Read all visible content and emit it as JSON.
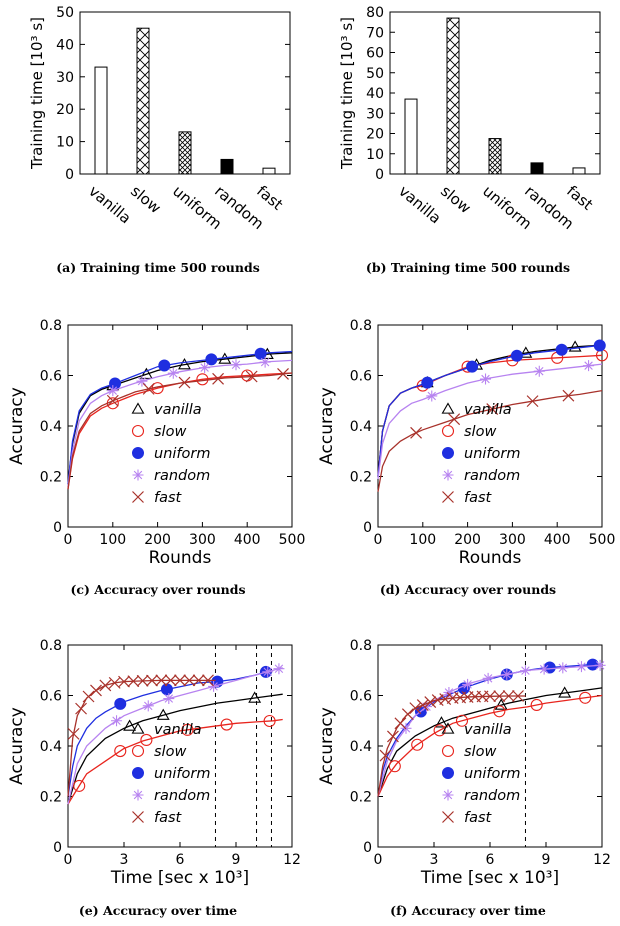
{
  "captions": {
    "a": "(a) Training time 500 rounds",
    "b": "(b) Training time 500 rounds",
    "c": "(c) Accuracy over rounds",
    "d": "(d) Accuracy over rounds",
    "e": "(e) Accuracy over time",
    "f": "(f) Accuracy over time"
  },
  "colors": {
    "vanilla": "#000000",
    "slow": "#e8251e",
    "uniform": "#1f2fe0",
    "random": "#b783f0",
    "fast": "#a8322b"
  },
  "chart_data": [
    {
      "id": "a",
      "type": "bar",
      "ylabel": "Training time [10³ s]",
      "ylim": [
        0,
        50
      ],
      "yticks": [
        0,
        10,
        20,
        30,
        40,
        50
      ],
      "categories": [
        "vanilla",
        "slow",
        "uniform",
        "random",
        "fast"
      ],
      "values": [
        33,
        45,
        13,
        4.5,
        1.8
      ],
      "patterns": [
        "empty",
        "cross",
        "dense",
        "solid",
        "empty"
      ]
    },
    {
      "id": "b",
      "type": "bar",
      "ylabel": "Training time [10³ s]",
      "ylim": [
        0,
        80
      ],
      "yticks": [
        0,
        10,
        20,
        30,
        40,
        50,
        60,
        70,
        80
      ],
      "categories": [
        "vanilla",
        "slow",
        "uniform",
        "random",
        "fast"
      ],
      "values": [
        37,
        77,
        17.5,
        5.5,
        3
      ],
      "patterns": [
        "empty",
        "cross",
        "dense",
        "solid",
        "empty"
      ]
    },
    {
      "id": "c",
      "type": "line",
      "xlabel": "Rounds",
      "ylabel": "Accuracy",
      "xlim": [
        0,
        500
      ],
      "xticks": [
        0,
        100,
        200,
        300,
        400,
        500
      ],
      "ylim": [
        0,
        0.8
      ],
      "yticks": [
        0,
        0.2,
        0.4,
        0.6,
        0.8
      ],
      "legend": "center",
      "series": [
        {
          "name": "vanilla",
          "x": [
            0,
            10,
            25,
            50,
            75,
            100,
            150,
            200,
            250,
            300,
            350,
            400,
            450,
            500
          ],
          "y": [
            0.17,
            0.33,
            0.45,
            0.52,
            0.545,
            0.56,
            0.59,
            0.62,
            0.64,
            0.655,
            0.665,
            0.675,
            0.685,
            0.69
          ],
          "markers_x": [
            100,
            175,
            260,
            350,
            445
          ]
        },
        {
          "name": "slow",
          "x": [
            0,
            10,
            25,
            50,
            75,
            100,
            150,
            200,
            250,
            300,
            350,
            400,
            450,
            500
          ],
          "y": [
            0.15,
            0.27,
            0.37,
            0.44,
            0.47,
            0.49,
            0.525,
            0.55,
            0.57,
            0.585,
            0.595,
            0.6,
            0.605,
            0.61
          ],
          "markers_x": [
            100,
            200,
            300,
            400
          ]
        },
        {
          "name": "uniform",
          "x": [
            0,
            10,
            25,
            50,
            75,
            100,
            150,
            200,
            250,
            300,
            350,
            400,
            450,
            500
          ],
          "y": [
            0.17,
            0.34,
            0.46,
            0.525,
            0.55,
            0.565,
            0.6,
            0.635,
            0.65,
            0.66,
            0.67,
            0.68,
            0.69,
            0.695
          ],
          "markers_x": [
            105,
            215,
            320,
            430
          ]
        },
        {
          "name": "random",
          "x": [
            0,
            10,
            25,
            50,
            75,
            100,
            150,
            200,
            250,
            300,
            350,
            400,
            450,
            500
          ],
          "y": [
            0.16,
            0.3,
            0.42,
            0.49,
            0.52,
            0.54,
            0.57,
            0.595,
            0.615,
            0.63,
            0.64,
            0.645,
            0.655,
            0.66
          ],
          "markers_x": [
            100,
            165,
            235,
            305,
            375,
            440
          ]
        },
        {
          "name": "fast",
          "x": [
            0,
            10,
            25,
            50,
            75,
            100,
            150,
            200,
            250,
            300,
            350,
            400,
            450,
            500
          ],
          "y": [
            0.15,
            0.28,
            0.38,
            0.45,
            0.48,
            0.5,
            0.535,
            0.555,
            0.57,
            0.58,
            0.59,
            0.595,
            0.6,
            0.61
          ],
          "markers_x": [
            100,
            180,
            260,
            335,
            410,
            480
          ]
        }
      ]
    },
    {
      "id": "d",
      "type": "line",
      "xlabel": "Rounds",
      "ylabel": "Accuracy",
      "xlim": [
        0,
        500
      ],
      "xticks": [
        0,
        100,
        200,
        300,
        400,
        500
      ],
      "ylim": [
        0,
        0.8
      ],
      "yticks": [
        0,
        0.2,
        0.4,
        0.6,
        0.8
      ],
      "legend": "center",
      "series": [
        {
          "name": "vanilla",
          "x": [
            0,
            10,
            25,
            50,
            75,
            100,
            150,
            200,
            250,
            300,
            350,
            400,
            450,
            500
          ],
          "y": [
            0.2,
            0.38,
            0.48,
            0.53,
            0.55,
            0.565,
            0.6,
            0.63,
            0.66,
            0.68,
            0.695,
            0.705,
            0.715,
            0.72
          ],
          "markers_x": [
            110,
            220,
            330,
            440
          ]
        },
        {
          "name": "slow",
          "x": [
            0,
            10,
            25,
            50,
            75,
            100,
            150,
            200,
            250,
            300,
            350,
            400,
            450,
            500
          ],
          "y": [
            0.2,
            0.38,
            0.48,
            0.53,
            0.55,
            0.56,
            0.6,
            0.635,
            0.65,
            0.66,
            0.665,
            0.67,
            0.675,
            0.68
          ],
          "markers_x": [
            100,
            200,
            300,
            400,
            500
          ]
        },
        {
          "name": "uniform",
          "x": [
            0,
            10,
            25,
            50,
            75,
            100,
            150,
            200,
            250,
            300,
            350,
            400,
            450,
            500
          ],
          "y": [
            0.2,
            0.38,
            0.48,
            0.53,
            0.55,
            0.565,
            0.6,
            0.63,
            0.655,
            0.675,
            0.69,
            0.7,
            0.71,
            0.72
          ],
          "markers_x": [
            110,
            210,
            310,
            410,
            495
          ]
        },
        {
          "name": "random",
          "x": [
            0,
            10,
            25,
            50,
            75,
            100,
            150,
            200,
            250,
            300,
            350,
            400,
            450,
            500
          ],
          "y": [
            0.19,
            0.33,
            0.41,
            0.46,
            0.49,
            0.505,
            0.54,
            0.57,
            0.59,
            0.605,
            0.615,
            0.625,
            0.635,
            0.645
          ],
          "markers_x": [
            120,
            240,
            360,
            470
          ]
        },
        {
          "name": "fast",
          "x": [
            0,
            10,
            25,
            50,
            75,
            100,
            150,
            200,
            250,
            300,
            350,
            400,
            450,
            500
          ],
          "y": [
            0.14,
            0.24,
            0.3,
            0.34,
            0.365,
            0.385,
            0.415,
            0.445,
            0.465,
            0.485,
            0.5,
            0.515,
            0.525,
            0.54
          ],
          "markers_x": [
            85,
            170,
            255,
            345,
            425
          ]
        }
      ]
    },
    {
      "id": "e",
      "type": "line",
      "xlabel": "Time [sec x 10³]",
      "ylabel": "Accuracy",
      "xlim": [
        0,
        12
      ],
      "xticks": [
        0,
        3,
        6,
        9,
        12
      ],
      "ylim": [
        0,
        0.8
      ],
      "yticks": [
        0,
        0.2,
        0.4,
        0.6,
        0.8
      ],
      "vlines": [
        7.9,
        10.1,
        10.9
      ],
      "legend": "center",
      "series": [
        {
          "name": "vanilla",
          "x": [
            0,
            0.5,
            1,
            2,
            3,
            4,
            5,
            6,
            7,
            8,
            9,
            10,
            11,
            11.5
          ],
          "y": [
            0.17,
            0.29,
            0.36,
            0.43,
            0.47,
            0.5,
            0.52,
            0.54,
            0.555,
            0.57,
            0.58,
            0.59,
            0.6,
            0.605
          ],
          "markers_x": [
            3.3,
            5.1,
            10
          ]
        },
        {
          "name": "slow",
          "x": [
            0,
            0.5,
            1,
            2,
            3,
            4,
            5,
            6,
            7,
            8,
            9,
            10,
            11,
            11.5
          ],
          "y": [
            0.17,
            0.23,
            0.29,
            0.34,
            0.39,
            0.42,
            0.44,
            0.46,
            0.47,
            0.48,
            0.49,
            0.495,
            0.5,
            0.505
          ],
          "markers_x": [
            0.6,
            2.8,
            4.2,
            6.4,
            8.5,
            10.8
          ]
        },
        {
          "name": "uniform",
          "x": [
            0,
            0.25,
            0.5,
            1,
            1.5,
            2,
            3,
            4,
            5,
            6,
            7,
            8,
            9,
            10,
            10.9
          ],
          "y": [
            0.2,
            0.32,
            0.4,
            0.47,
            0.51,
            0.535,
            0.575,
            0.6,
            0.62,
            0.635,
            0.65,
            0.655,
            0.665,
            0.68,
            0.7
          ],
          "markers_x": [
            2.8,
            5.3,
            8,
            10.6
          ]
        },
        {
          "name": "random",
          "x": [
            0,
            0.5,
            1,
            2,
            3,
            4,
            5,
            6,
            7,
            8,
            9,
            10,
            11,
            11.5
          ],
          "y": [
            0.17,
            0.33,
            0.4,
            0.47,
            0.52,
            0.55,
            0.58,
            0.6,
            0.62,
            0.64,
            0.66,
            0.68,
            0.7,
            0.71
          ],
          "markers_x": [
            2.6,
            4.3,
            5.4,
            7.8,
            10.7,
            11.3
          ]
        },
        {
          "name": "fast",
          "x": [
            0,
            0.25,
            0.5,
            1,
            1.5,
            2,
            2.5,
            3,
            4,
            5,
            6,
            7,
            7.9
          ],
          "y": [
            0.2,
            0.43,
            0.52,
            0.59,
            0.62,
            0.64,
            0.65,
            0.655,
            0.658,
            0.66,
            0.66,
            0.66,
            0.66
          ],
          "markers_x": [
            0.3,
            0.7,
            1.1,
            1.5,
            2,
            2.5,
            3,
            3.5,
            4,
            4.5,
            5,
            5.5,
            6,
            6.5,
            7,
            7.5
          ]
        }
      ]
    },
    {
      "id": "f",
      "type": "line",
      "xlabel": "Time [sec x 10³]",
      "ylabel": "Accuracy",
      "xlim": [
        0,
        12
      ],
      "xticks": [
        0,
        3,
        6,
        9,
        12
      ],
      "ylim": [
        0,
        0.8
      ],
      "yticks": [
        0,
        0.2,
        0.4,
        0.6,
        0.8
      ],
      "vlines": [
        7.9
      ],
      "legend": "center",
      "series": [
        {
          "name": "vanilla",
          "x": [
            0,
            0.5,
            1,
            2,
            3,
            4,
            5,
            6,
            7,
            8,
            9,
            10,
            11,
            12
          ],
          "y": [
            0.2,
            0.31,
            0.38,
            0.44,
            0.48,
            0.51,
            0.53,
            0.55,
            0.57,
            0.585,
            0.6,
            0.61,
            0.62,
            0.63
          ],
          "markers_x": [
            3.4,
            6.6,
            10
          ]
        },
        {
          "name": "slow",
          "x": [
            0,
            0.5,
            1,
            2,
            3,
            4,
            5,
            6,
            7,
            8,
            9,
            10,
            11,
            12
          ],
          "y": [
            0.2,
            0.28,
            0.33,
            0.4,
            0.45,
            0.49,
            0.51,
            0.53,
            0.545,
            0.555,
            0.57,
            0.58,
            0.59,
            0.6
          ],
          "markers_x": [
            0.9,
            2.1,
            3.3,
            4.5,
            6.5,
            8.5,
            11.1
          ]
        },
        {
          "name": "uniform",
          "x": [
            0,
            0.25,
            0.5,
            1,
            1.5,
            2,
            3,
            4,
            5,
            6,
            7,
            8,
            9,
            10,
            11,
            12
          ],
          "y": [
            0.2,
            0.3,
            0.36,
            0.43,
            0.48,
            0.52,
            0.575,
            0.61,
            0.64,
            0.665,
            0.685,
            0.7,
            0.71,
            0.715,
            0.72,
            0.725
          ],
          "markers_x": [
            2.3,
            4.6,
            6.9,
            9.2,
            11.5
          ]
        },
        {
          "name": "random",
          "x": [
            0,
            0.5,
            1,
            2,
            3,
            4,
            5,
            6,
            7,
            8,
            9,
            10,
            11,
            12
          ],
          "y": [
            0.2,
            0.34,
            0.42,
            0.52,
            0.58,
            0.62,
            0.65,
            0.67,
            0.685,
            0.7,
            0.705,
            0.71,
            0.715,
            0.72
          ],
          "markers_x": [
            1.5,
            2.6,
            3.8,
            4.8,
            5.9,
            6.9,
            7.9,
            8.9,
            9.9,
            10.9,
            11.9
          ]
        },
        {
          "name": "fast",
          "x": [
            0,
            0.25,
            0.5,
            1,
            1.5,
            2,
            3,
            4,
            5,
            6,
            7,
            7.9
          ],
          "y": [
            0.2,
            0.32,
            0.39,
            0.47,
            0.52,
            0.55,
            0.58,
            0.59,
            0.595,
            0.597,
            0.598,
            0.598
          ],
          "markers_x": [
            0.4,
            0.8,
            1.2,
            1.6,
            2,
            2.4,
            2.8,
            3.2,
            3.6,
            4,
            4.4,
            4.8,
            5.2,
            5.6,
            6,
            6.5,
            7,
            7.5
          ]
        }
      ]
    }
  ]
}
